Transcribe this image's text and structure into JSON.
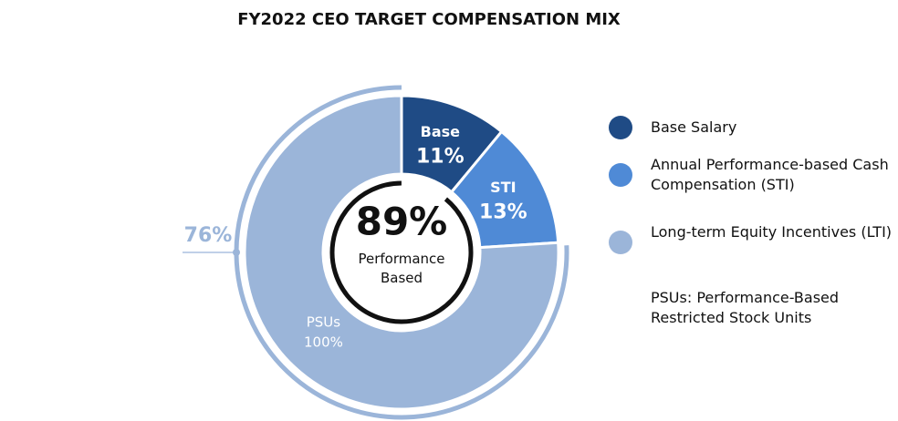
{
  "chart_data": {
    "type": "pie",
    "style": "donut",
    "title": "FY2022 CEO TARGET COMPENSATION MIX",
    "categories": [
      "Base Salary",
      "Annual Performance-based Cash Compensation (STI)",
      "Long-term Equity Incentives (LTI)"
    ],
    "values": [
      11,
      13,
      76
    ],
    "value_labels": [
      "11%",
      "13%",
      "76%"
    ],
    "slice_labels": [
      "Base",
      "STI",
      "PSUs"
    ],
    "colors": [
      "#1f4b85",
      "#4f8ad6",
      "#9bb5d9"
    ],
    "annotations": {
      "center_value": "89%",
      "center_text": "Performance Based",
      "psu_share": "100%",
      "legend_note": "PSUs: Performance-Based Restricted Stock Units"
    }
  }
}
